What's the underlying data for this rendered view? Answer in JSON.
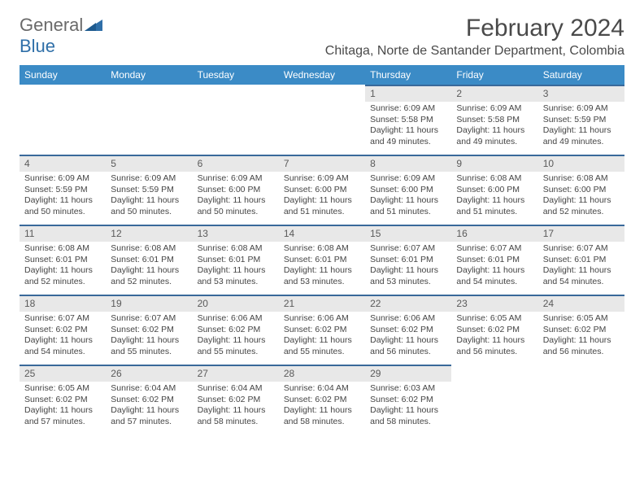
{
  "logo": {
    "word1": "General",
    "word2": "Blue"
  },
  "month_title": "February 2024",
  "location": "Chitaga, Norte de Santander Department, Colombia",
  "colors": {
    "header_bg": "#3b8bc6",
    "header_text": "#ffffff",
    "daynum_bg": "#e8e8e8",
    "daynum_border": "#39699a",
    "body_text": "#444444",
    "title_text": "#4a4a4a",
    "logo_gray": "#6a6a6a",
    "logo_blue": "#2f6fa8"
  },
  "day_headers": [
    "Sunday",
    "Monday",
    "Tuesday",
    "Wednesday",
    "Thursday",
    "Friday",
    "Saturday"
  ],
  "weeks": [
    [
      {
        "empty": true
      },
      {
        "empty": true
      },
      {
        "empty": true
      },
      {
        "empty": true
      },
      {
        "num": "1",
        "sunrise": "Sunrise: 6:09 AM",
        "sunset": "Sunset: 5:58 PM",
        "day1": "Daylight: 11 hours",
        "day2": "and 49 minutes."
      },
      {
        "num": "2",
        "sunrise": "Sunrise: 6:09 AM",
        "sunset": "Sunset: 5:58 PM",
        "day1": "Daylight: 11 hours",
        "day2": "and 49 minutes."
      },
      {
        "num": "3",
        "sunrise": "Sunrise: 6:09 AM",
        "sunset": "Sunset: 5:59 PM",
        "day1": "Daylight: 11 hours",
        "day2": "and 49 minutes."
      }
    ],
    [
      {
        "num": "4",
        "sunrise": "Sunrise: 6:09 AM",
        "sunset": "Sunset: 5:59 PM",
        "day1": "Daylight: 11 hours",
        "day2": "and 50 minutes."
      },
      {
        "num": "5",
        "sunrise": "Sunrise: 6:09 AM",
        "sunset": "Sunset: 5:59 PM",
        "day1": "Daylight: 11 hours",
        "day2": "and 50 minutes."
      },
      {
        "num": "6",
        "sunrise": "Sunrise: 6:09 AM",
        "sunset": "Sunset: 6:00 PM",
        "day1": "Daylight: 11 hours",
        "day2": "and 50 minutes."
      },
      {
        "num": "7",
        "sunrise": "Sunrise: 6:09 AM",
        "sunset": "Sunset: 6:00 PM",
        "day1": "Daylight: 11 hours",
        "day2": "and 51 minutes."
      },
      {
        "num": "8",
        "sunrise": "Sunrise: 6:09 AM",
        "sunset": "Sunset: 6:00 PM",
        "day1": "Daylight: 11 hours",
        "day2": "and 51 minutes."
      },
      {
        "num": "9",
        "sunrise": "Sunrise: 6:08 AM",
        "sunset": "Sunset: 6:00 PM",
        "day1": "Daylight: 11 hours",
        "day2": "and 51 minutes."
      },
      {
        "num": "10",
        "sunrise": "Sunrise: 6:08 AM",
        "sunset": "Sunset: 6:00 PM",
        "day1": "Daylight: 11 hours",
        "day2": "and 52 minutes."
      }
    ],
    [
      {
        "num": "11",
        "sunrise": "Sunrise: 6:08 AM",
        "sunset": "Sunset: 6:01 PM",
        "day1": "Daylight: 11 hours",
        "day2": "and 52 minutes."
      },
      {
        "num": "12",
        "sunrise": "Sunrise: 6:08 AM",
        "sunset": "Sunset: 6:01 PM",
        "day1": "Daylight: 11 hours",
        "day2": "and 52 minutes."
      },
      {
        "num": "13",
        "sunrise": "Sunrise: 6:08 AM",
        "sunset": "Sunset: 6:01 PM",
        "day1": "Daylight: 11 hours",
        "day2": "and 53 minutes."
      },
      {
        "num": "14",
        "sunrise": "Sunrise: 6:08 AM",
        "sunset": "Sunset: 6:01 PM",
        "day1": "Daylight: 11 hours",
        "day2": "and 53 minutes."
      },
      {
        "num": "15",
        "sunrise": "Sunrise: 6:07 AM",
        "sunset": "Sunset: 6:01 PM",
        "day1": "Daylight: 11 hours",
        "day2": "and 53 minutes."
      },
      {
        "num": "16",
        "sunrise": "Sunrise: 6:07 AM",
        "sunset": "Sunset: 6:01 PM",
        "day1": "Daylight: 11 hours",
        "day2": "and 54 minutes."
      },
      {
        "num": "17",
        "sunrise": "Sunrise: 6:07 AM",
        "sunset": "Sunset: 6:01 PM",
        "day1": "Daylight: 11 hours",
        "day2": "and 54 minutes."
      }
    ],
    [
      {
        "num": "18",
        "sunrise": "Sunrise: 6:07 AM",
        "sunset": "Sunset: 6:02 PM",
        "day1": "Daylight: 11 hours",
        "day2": "and 54 minutes."
      },
      {
        "num": "19",
        "sunrise": "Sunrise: 6:07 AM",
        "sunset": "Sunset: 6:02 PM",
        "day1": "Daylight: 11 hours",
        "day2": "and 55 minutes."
      },
      {
        "num": "20",
        "sunrise": "Sunrise: 6:06 AM",
        "sunset": "Sunset: 6:02 PM",
        "day1": "Daylight: 11 hours",
        "day2": "and 55 minutes."
      },
      {
        "num": "21",
        "sunrise": "Sunrise: 6:06 AM",
        "sunset": "Sunset: 6:02 PM",
        "day1": "Daylight: 11 hours",
        "day2": "and 55 minutes."
      },
      {
        "num": "22",
        "sunrise": "Sunrise: 6:06 AM",
        "sunset": "Sunset: 6:02 PM",
        "day1": "Daylight: 11 hours",
        "day2": "and 56 minutes."
      },
      {
        "num": "23",
        "sunrise": "Sunrise: 6:05 AM",
        "sunset": "Sunset: 6:02 PM",
        "day1": "Daylight: 11 hours",
        "day2": "and 56 minutes."
      },
      {
        "num": "24",
        "sunrise": "Sunrise: 6:05 AM",
        "sunset": "Sunset: 6:02 PM",
        "day1": "Daylight: 11 hours",
        "day2": "and 56 minutes."
      }
    ],
    [
      {
        "num": "25",
        "sunrise": "Sunrise: 6:05 AM",
        "sunset": "Sunset: 6:02 PM",
        "day1": "Daylight: 11 hours",
        "day2": "and 57 minutes."
      },
      {
        "num": "26",
        "sunrise": "Sunrise: 6:04 AM",
        "sunset": "Sunset: 6:02 PM",
        "day1": "Daylight: 11 hours",
        "day2": "and 57 minutes."
      },
      {
        "num": "27",
        "sunrise": "Sunrise: 6:04 AM",
        "sunset": "Sunset: 6:02 PM",
        "day1": "Daylight: 11 hours",
        "day2": "and 58 minutes."
      },
      {
        "num": "28",
        "sunrise": "Sunrise: 6:04 AM",
        "sunset": "Sunset: 6:02 PM",
        "day1": "Daylight: 11 hours",
        "day2": "and 58 minutes."
      },
      {
        "num": "29",
        "sunrise": "Sunrise: 6:03 AM",
        "sunset": "Sunset: 6:02 PM",
        "day1": "Daylight: 11 hours",
        "day2": "and 58 minutes."
      },
      {
        "empty": true
      },
      {
        "empty": true
      }
    ]
  ]
}
